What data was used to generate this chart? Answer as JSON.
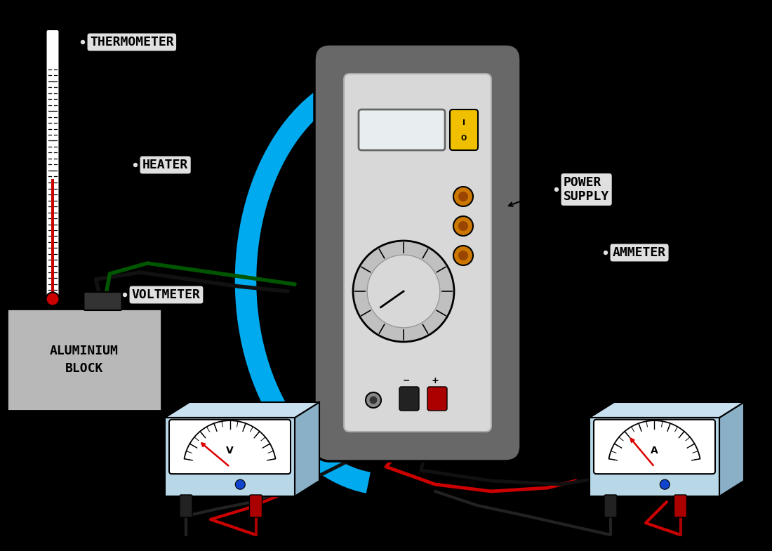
{
  "bg_color": "#000000",
  "label_bg": "#e0e0e0",
  "label_border": "#000000",
  "block_color": "#b8b8b8",
  "block_border": "#000000",
  "ps_outer": "#686868",
  "ps_inner": "#d8d8d8",
  "ps_screen": "#e8eef0",
  "ps_screen_border": "#666666",
  "yellow_btn": "#f0c000",
  "orange_port": "#cc7700",
  "dial_outer": "#c0c0c0",
  "dial_inner": "#d8d8d8",
  "meter_body_front": "#b8d8e8",
  "meter_body_side": "#8ab0c8",
  "meter_body_top": "#c8e0f0",
  "meter_face": "#ffffff",
  "blue_arc": "#00aaee",
  "wire_black": "#111111",
  "wire_red": "#cc0000",
  "wire_green": "#005500",
  "needle_red": "#dd0000",
  "plug_dark": "#444444",
  "labels": {
    "thermometer": "THERMOMETER",
    "heater": "HEATER",
    "aluminium": "ALUMINIUM\nBLOCK",
    "voltmeter": "VOLTMETER",
    "power_supply": "POWER\nSUPPLY",
    "ammeter": "AMMETER"
  },
  "label_fontsize": 13
}
